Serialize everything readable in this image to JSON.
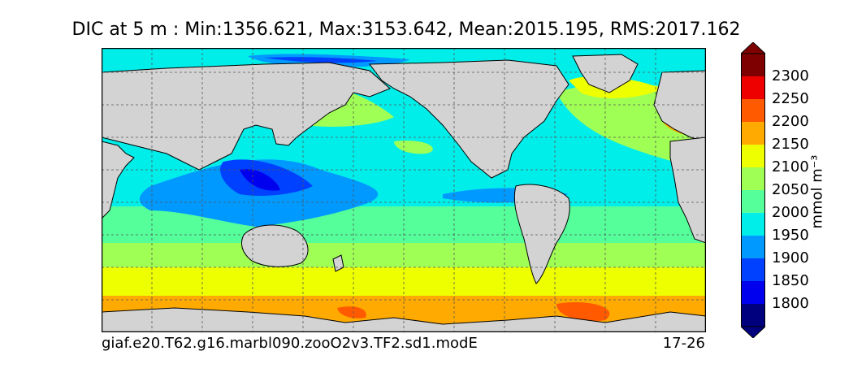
{
  "title": "DIC at 5 m : Min:1356.621, Max:3153.642, Mean:2015.195, RMS:2017.162",
  "footer": {
    "run_name": "giaf.e20.T62.g16.marbl090.zooO2v3.TF2.sd1.modE",
    "years": "17-26"
  },
  "colorbar": {
    "units": "mmol m⁻³",
    "tick_labels": [
      "2300",
      "2250",
      "2200",
      "2150",
      "2100",
      "2050",
      "2000",
      "1950",
      "1900",
      "1850",
      "1800"
    ],
    "colors": [
      "#7f0000",
      "#ee0000",
      "#ff5a00",
      "#ffaa00",
      "#eeff00",
      "#a0ff55",
      "#55ff9a",
      "#00eeea",
      "#0099ff",
      "#0040ff",
      "#0000ee",
      "#00007f"
    ]
  },
  "colors": {
    "land": "#d3d3d3",
    "grid": "#555555"
  }
}
